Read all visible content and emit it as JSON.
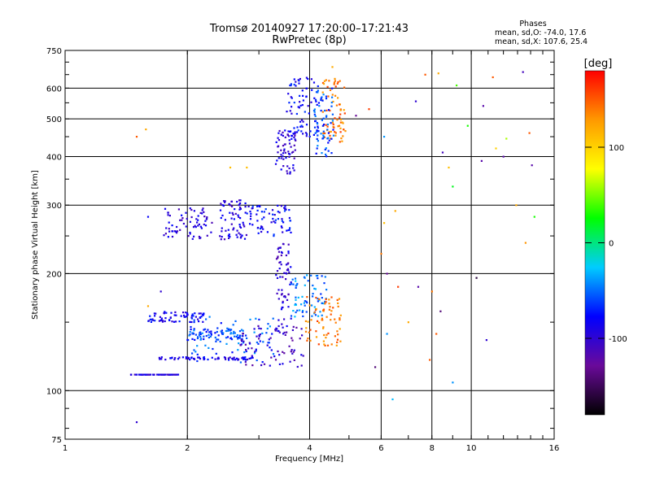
{
  "chart_data": {
    "type": "scatter",
    "title": "Tromsø 20140927 17:20:00–17:21:43",
    "subtitle": "RwPretec (8p)",
    "annotation": {
      "heading": "Phases",
      "line_o": "mean, sd,O: -74.0, 17.6",
      "line_x": "mean, sd,X: 107.6, 25.4"
    },
    "xlabel": "Frequency [MHz]",
    "ylabel": "Stationary phase Virtual Height [km]",
    "x_scale": "log",
    "y_scale": "log",
    "xlim": [
      1,
      16
    ],
    "ylim": [
      75,
      750
    ],
    "x_ticks": [
      1,
      2,
      4,
      6,
      8,
      10,
      16
    ],
    "x_tick_labels": [
      "1",
      "2",
      "4",
      "6",
      "8",
      "10",
      "16"
    ],
    "y_ticks": [
      75,
      100,
      200,
      300,
      400,
      500,
      600,
      750
    ],
    "y_tick_labels": [
      "75",
      "100",
      "200",
      "300",
      "400",
      "500",
      "600",
      "750"
    ],
    "grid": true,
    "colorbar": {
      "label": "[deg]",
      "range": [
        -180,
        180
      ],
      "ticks": [
        100,
        0,
        -100
      ],
      "tick_labels": [
        "100",
        "0",
        "-100"
      ],
      "colormap": "rainbow"
    },
    "color_stops": [
      "#000000",
      "#6a0a9a",
      "#0000ff",
      "#00ccff",
      "#00ff00",
      "#ffff00",
      "#ff9900",
      "#ff0000"
    ],
    "series": [
      {
        "x": [
          1.45,
          1.9
        ],
        "y": [
          110,
          110
        ],
        "phase": -95
      },
      {
        "x": [
          1.6,
          2.2
        ],
        "y": [
          150,
          160
        ],
        "phase": -85
      },
      {
        "x": [
          1.7,
          2.9
        ],
        "y": [
          120,
          122
        ],
        "phase": -90
      },
      {
        "x": [
          2.0,
          2.8
        ],
        "y": [
          135,
          145
        ],
        "phase": -60
      },
      {
        "x": [
          2.0,
          3.3
        ],
        "y": [
          118,
          155
        ],
        "phase": -55
      },
      {
        "x": [
          2.7,
          3.9
        ],
        "y": [
          115,
          148
        ],
        "phase": -105
      },
      {
        "x": [
          3.3,
          3.6
        ],
        "y": [
          140,
          240
        ],
        "phase": -100
      },
      {
        "x": [
          3.6,
          4.4
        ],
        "y": [
          155,
          200
        ],
        "phase": -45
      },
      {
        "x": [
          3.9,
          4.8
        ],
        "y": [
          130,
          175
        ],
        "phase": 140
      },
      {
        "x": [
          1.75,
          2.3
        ],
        "y": [
          245,
          295
        ],
        "phase": -95
      },
      {
        "x": [
          2.4,
          2.8
        ],
        "y": [
          245,
          310
        ],
        "phase": -95
      },
      {
        "x": [
          2.8,
          3.6
        ],
        "y": [
          250,
          300
        ],
        "phase": -80
      },
      {
        "x": [
          3.3,
          3.7
        ],
        "y": [
          360,
          470
        ],
        "phase": -95
      },
      {
        "x": [
          3.5,
          4.2
        ],
        "y": [
          450,
          640
        ],
        "phase": -80
      },
      {
        "x": [
          4.3,
          4.9
        ],
        "y": [
          430,
          640
        ],
        "phase": 140
      },
      {
        "x": [
          4.1,
          4.6
        ],
        "y": [
          400,
          600
        ],
        "phase": -60
      }
    ],
    "scattered_points": {
      "x": [
        1.5,
        1.58,
        1.6,
        1.72,
        1.85,
        2.55,
        2.8,
        1.5,
        1.6,
        6.2,
        6.5,
        7.3,
        7.7,
        8.3,
        8.5,
        9.2,
        9.0,
        10.6,
        11.3,
        12.2,
        12.9,
        13.4,
        14.1,
        14.3,
        13.9,
        5.8,
        6.0,
        6.2,
        6.6,
        7.4,
        8.0,
        8.4,
        9.0,
        10.3,
        10.7,
        10.9,
        11.5,
        12.0,
        13.6,
        6.4,
        7.9,
        8.8,
        5.2,
        5.6,
        9.8,
        6.1,
        7.0,
        8.2,
        4.55,
        4.6,
        6.1
      ],
      "y": [
        450,
        470,
        280,
        180,
        110,
        375,
        375,
        83,
        165,
        140,
        290,
        555,
        650,
        655,
        410,
        610,
        335,
        390,
        640,
        445,
        300,
        660,
        380,
        280,
        460,
        115,
        225,
        200,
        185,
        185,
        180,
        160,
        105,
        195,
        540,
        135,
        420,
        400,
        240,
        95,
        120,
        375,
        510,
        530,
        480,
        270,
        150,
        140,
        680,
        620,
        450
      ],
      "phase": [
        150,
        120,
        -80,
        -100,
        -100,
        110,
        110,
        -100,
        120,
        -40,
        120,
        -100,
        150,
        120,
        -110,
        40,
        20,
        -120,
        150,
        60,
        120,
        -110,
        -120,
        30,
        150,
        -140,
        140,
        -130,
        160,
        -120,
        140,
        -140,
        -40,
        -160,
        -120,
        -100,
        100,
        -120,
        130,
        -30,
        150,
        110,
        -130,
        160,
        30,
        110,
        120,
        150,
        120,
        140,
        -40
      ]
    }
  }
}
